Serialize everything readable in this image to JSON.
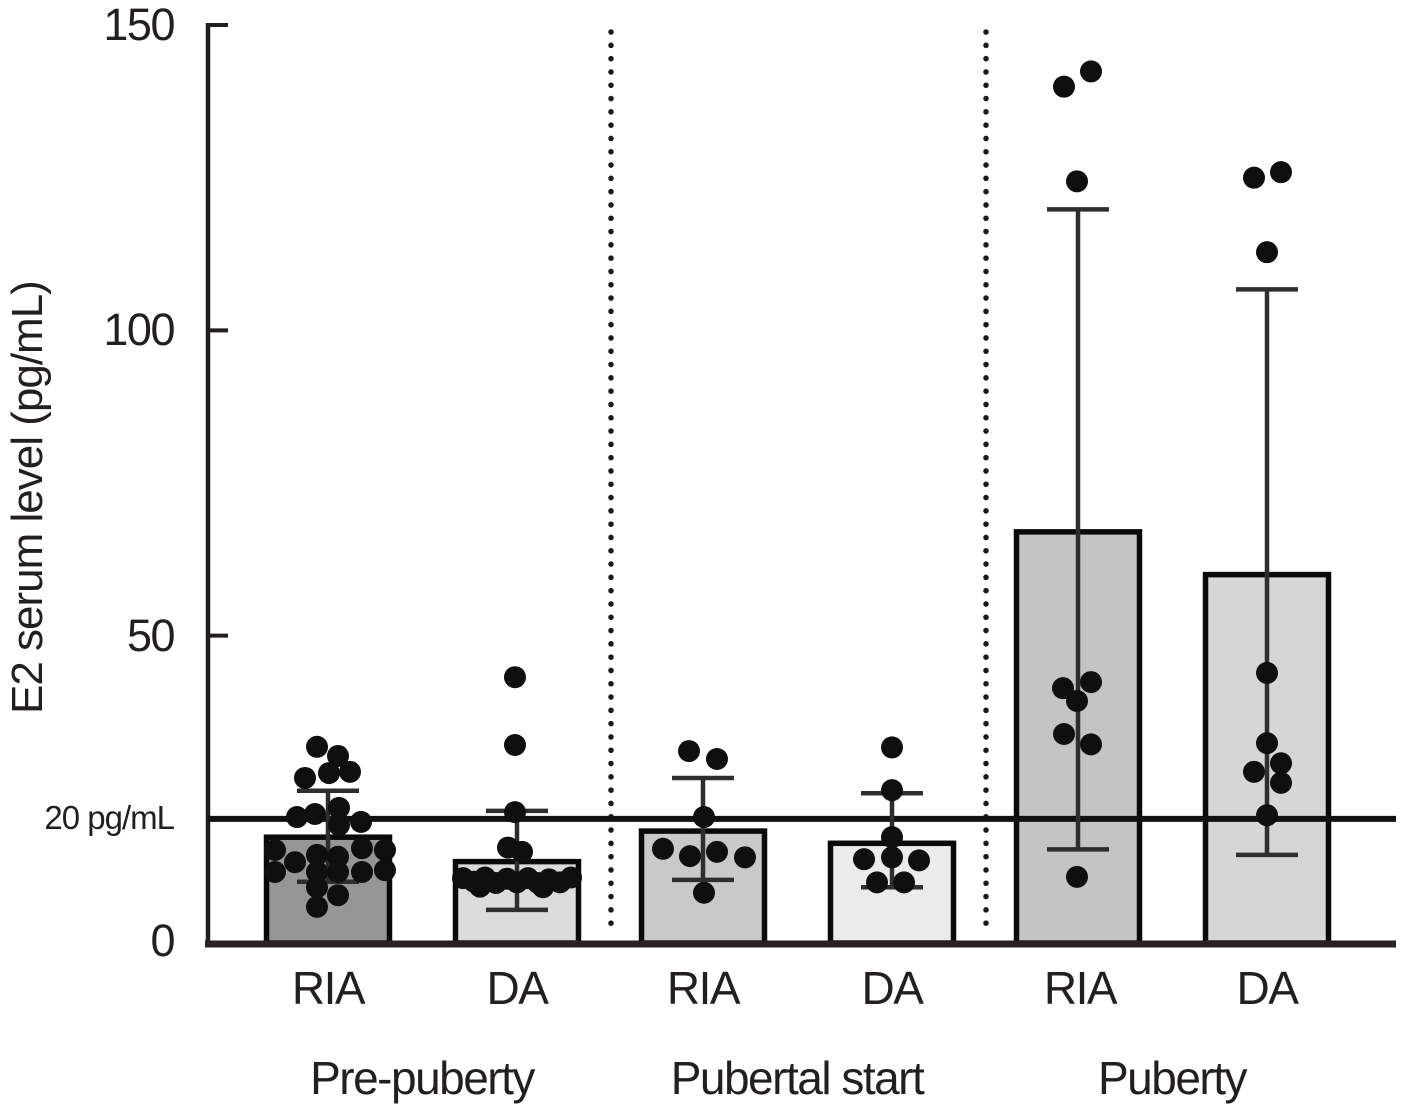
{
  "chart_data": {
    "type": "bar",
    "title": "",
    "ylabel": "E2 serum level (pg/mL)",
    "xlabel": "",
    "ylim": [
      0,
      150
    ],
    "yticks": [
      0,
      50,
      100,
      150
    ],
    "ytick_labels": [
      "0",
      "50",
      "100",
      "150"
    ],
    "grid": false,
    "legend": false,
    "reference_line": {
      "value": 20,
      "label": "20 pg/mL",
      "color": "#111111"
    },
    "separator_color": "#1a1a1a",
    "axis_color": "#231f20",
    "bar_stroke_color": "#0a0a0a",
    "point_color": "#0f0f0f",
    "groups": [
      {
        "label": "Pre-puberty",
        "bars": [
          {
            "label": "RIA",
            "mean": 17,
            "err_low": 9.7,
            "err_high": 24.6,
            "fill": "#969696",
            "points": [
              [
                31.8,
                -11
              ],
              [
                30.3,
                10
              ],
              [
                26.7,
                -23
              ],
              [
                27.5,
                1
              ],
              [
                27.7,
                22
              ],
              [
                20.3,
                -31
              ],
              [
                20.8,
                -13
              ],
              [
                21.8,
                11
              ],
              [
                19.0,
                11
              ],
              [
                19.5,
                33
              ],
              [
                14.9,
                -53
              ],
              [
                14.1,
                -11
              ],
              [
                13.8,
                10
              ],
              [
                15.2,
                34
              ],
              [
                14.9,
                57
              ],
              [
                12.9,
                -33
              ],
              [
                11.3,
                -53
              ],
              [
                11.3,
                -11
              ],
              [
                11.3,
                10
              ],
              [
                11.3,
                34
              ],
              [
                11.6,
                57
              ],
              [
                8.8,
                -11
              ],
              [
                7.5,
                10
              ],
              [
                5.6,
                -11
              ]
            ]
          },
          {
            "label": "DA",
            "mean": 13,
            "err_low": 5.1,
            "err_high": 21.3,
            "fill": "#dcdcdc",
            "points": [
              [
                43.2,
                -2
              ],
              [
                32.1,
                -2
              ],
              [
                21.1,
                -2
              ],
              [
                15.3,
                -9
              ],
              [
                14.6,
                5
              ],
              [
                10.3,
                -54
              ],
              [
                9.7,
                -43
              ],
              [
                10.4,
                -32
              ],
              [
                9.5,
                -21
              ],
              [
                10.2,
                -10
              ],
              [
                9.6,
                0
              ],
              [
                10.3,
                11
              ],
              [
                9.5,
                21
              ],
              [
                10.1,
                32
              ],
              [
                9.6,
                43
              ],
              [
                10.4,
                54
              ],
              [
                8.9,
                -37
              ],
              [
                8.8,
                26
              ]
            ]
          }
        ]
      },
      {
        "label": "Pubertal start",
        "bars": [
          {
            "label": "RIA",
            "mean": 18,
            "err_low": 10.0,
            "err_high": 26.7,
            "fill": "#c9c9c9",
            "points": [
              [
                31.1,
                -14
              ],
              [
                29.8,
                14
              ],
              [
                20.3,
                1
              ],
              [
                15.1,
                -40
              ],
              [
                13.9,
                -13
              ],
              [
                14.6,
                14
              ],
              [
                13.7,
                42
              ],
              [
                7.9,
                1
              ]
            ]
          },
          {
            "label": "DA",
            "mean": 16,
            "err_low": 8.8,
            "err_high": 24.2,
            "fill": "#ebebeb",
            "points": [
              [
                31.7,
                0
              ],
              [
                24.7,
                0
              ],
              [
                17.0,
                0
              ],
              [
                13.4,
                -28
              ],
              [
                13.7,
                0
              ],
              [
                13.2,
                27
              ],
              [
                9.6,
                -15
              ],
              [
                9.6,
                12
              ]
            ]
          }
        ]
      },
      {
        "label": "Puberty",
        "bars": [
          {
            "label": "RIA",
            "mean": 67,
            "err_low": 15.0,
            "err_high": 119.8,
            "fill": "#c4c4c4",
            "points": [
              [
                139.9,
                -14
              ],
              [
                142.4,
                13
              ],
              [
                124.4,
                -1
              ],
              [
                41.4,
                -15
              ],
              [
                42.4,
                13
              ],
              [
                39.3,
                -1
              ],
              [
                33.9,
                -14
              ],
              [
                32.2,
                13
              ],
              [
                10.5,
                -1
              ]
            ]
          },
          {
            "label": "DA",
            "mean": 60,
            "err_low": 14.1,
            "err_high": 106.7,
            "fill": "#d6d6d6",
            "points": [
              [
                125.0,
                -13
              ],
              [
                125.9,
                14
              ],
              [
                112.8,
                0
              ],
              [
                43.9,
                0
              ],
              [
                32.4,
                0
              ],
              [
                29.1,
                14
              ],
              [
                27.7,
                -13
              ],
              [
                25.9,
                14
              ],
              [
                20.6,
                0
              ]
            ]
          }
        ]
      }
    ]
  }
}
